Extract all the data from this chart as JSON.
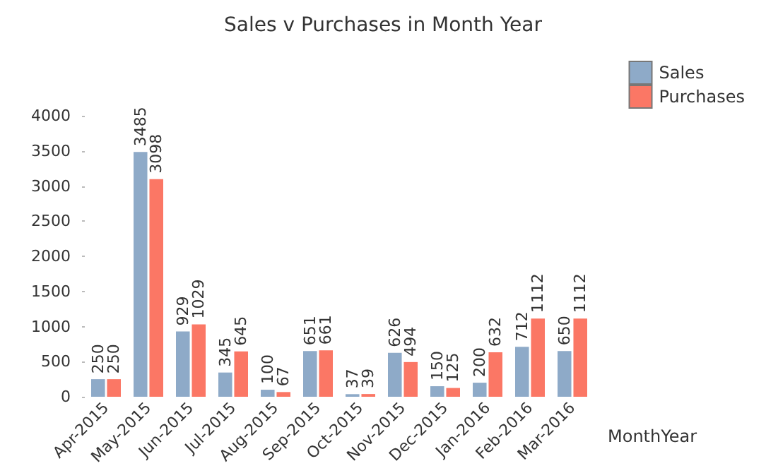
{
  "chart_data": {
    "type": "bar",
    "title": "Sales v Purchases in Month Year",
    "xlabel": "MonthYear",
    "categories": [
      "Apr-2015",
      "May-2015",
      "Jun-2015",
      "Jul-2015",
      "Aug-2015",
      "Sep-2015",
      "Oct-2015",
      "Nov-2015",
      "Dec-2015",
      "Jan-2016",
      "Feb-2016",
      "Mar-2016"
    ],
    "series": [
      {
        "name": "Sales",
        "color": "#8eaac8",
        "values": [
          250,
          3485,
          929,
          345,
          100,
          651,
          37,
          626,
          150,
          200,
          712,
          650
        ]
      },
      {
        "name": "Purchases",
        "color": "#fb7765",
        "values": [
          250,
          3098,
          1029,
          645,
          67,
          661,
          39,
          494,
          125,
          632,
          1112,
          1112
        ]
      }
    ],
    "ylim": [
      0,
      4000
    ],
    "yticks": [
      0,
      500,
      1000,
      1500,
      2000,
      2500,
      3000,
      3500,
      4000
    ],
    "grid": false,
    "legend": "top right",
    "data_labels": true
  }
}
